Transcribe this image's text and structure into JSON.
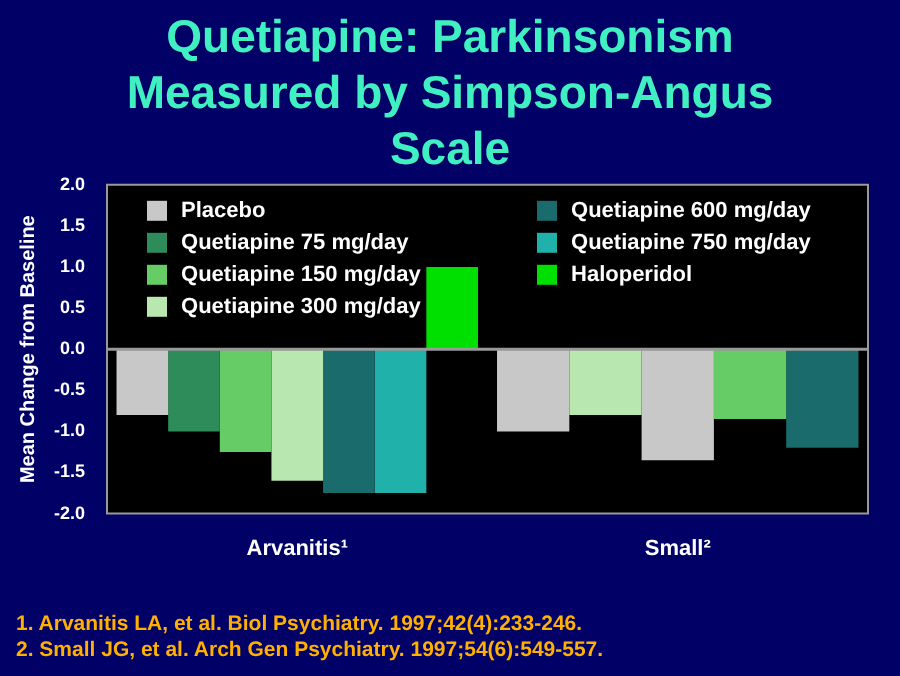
{
  "chart_data": {
    "type": "bar",
    "title": "Quetiapine: Parkinsonism Measured by Simpson-Angus Scale",
    "ylabel": "Mean Change from Baseline",
    "categories": [
      "Arvanitis¹",
      "Small²"
    ],
    "series": [
      {
        "name": "Placebo",
        "color": "#c8c8c8",
        "values": [
          -0.8,
          null
        ]
      },
      {
        "name": "Quetiapine 75 mg/day",
        "color": "#2e8b5a",
        "values": [
          -1.0,
          null
        ]
      },
      {
        "name": "Quetiapine 150 mg/day",
        "color": "#66cc66",
        "values": [
          -1.25,
          null
        ]
      },
      {
        "name": "Quetiapine 300 mg/day",
        "color": "#b8e8b0",
        "values": [
          -1.6,
          null
        ]
      },
      {
        "name": "Quetiapine 600 mg/day",
        "color": "#1a6b6b",
        "values": [
          -1.75,
          null
        ]
      },
      {
        "name": "Quetiapine 750 mg/day",
        "color": "#20b2aa",
        "values": [
          -1.75,
          null
        ]
      },
      {
        "name": "Haloperidol",
        "color": "#00e000",
        "values": [
          1.0,
          null
        ]
      },
      {
        "color": "#c8c8c8",
        "values": [
          null,
          -1.0
        ]
      },
      {
        "color": "#b8e8b0",
        "values": [
          null,
          -0.8
        ]
      },
      {
        "color": "#c8c8c8",
        "values": [
          null,
          -1.35
        ]
      },
      {
        "color": "#66cc66",
        "values": [
          null,
          -0.85
        ]
      },
      {
        "color": "#1a6b6b",
        "values": [
          null,
          -1.2
        ]
      }
    ],
    "ylim": [
      -2.0,
      2.0
    ],
    "yticks": [
      {
        "value": -2,
        "label": "-2.0"
      },
      {
        "value": -1.5,
        "label": "-1.5"
      },
      {
        "value": -1,
        "label": "-1.0"
      },
      {
        "value": -0.5,
        "label": "-0.5"
      },
      {
        "value": 0,
        "label": "0.0"
      },
      {
        "value": 0.5,
        "label": "0.5"
      },
      {
        "value": 1,
        "label": "1.0"
      },
      {
        "value": 1.5,
        "label": "1.5"
      },
      {
        "value": 2,
        "label": "2.0"
      }
    ],
    "grid": false,
    "legend": "top",
    "ref_lines": [
      {
        "axis": "y",
        "value": 0,
        "color": "#999999"
      }
    ],
    "annotations": [
      "1. Arvanitis LA, et al. Biol Psychiatry. 1997;42(4):233-246.",
      "2. Small JG, et al. Arch Gen Psychiatry. 1997;54(6):549-557."
    ]
  }
}
